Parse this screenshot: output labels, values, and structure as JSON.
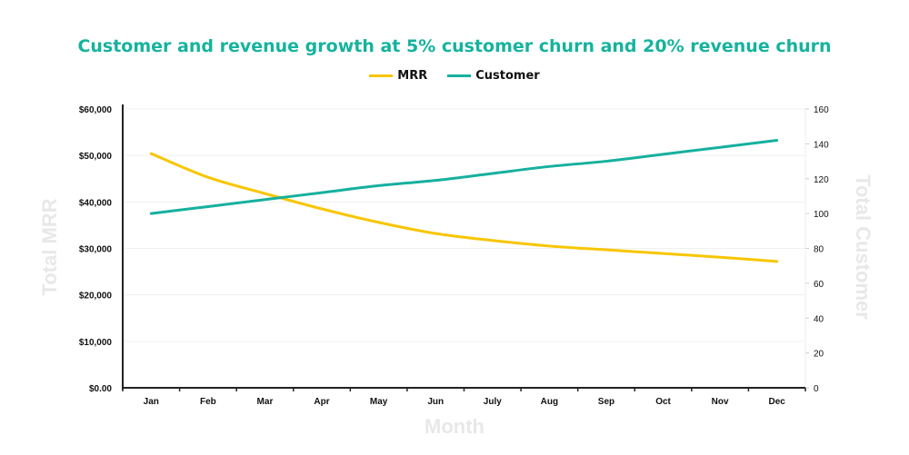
{
  "chart_data": {
    "type": "line",
    "title": "Customer and revenue growth at 5% customer churn and 20% revenue churn",
    "xlabel": "Month",
    "ylabel": "Total MRR",
    "y2label": "Total Customer",
    "categories": [
      "Jan",
      "Feb",
      "Mar",
      "Apr",
      "May",
      "Jun",
      "July",
      "Aug",
      "Sep",
      "Oct",
      "Nov",
      "Dec"
    ],
    "ylim": [
      0,
      60000
    ],
    "y2lim": [
      0,
      160
    ],
    "yticks": [
      "$0.00",
      "$10,000",
      "$20,000",
      "$30,000",
      "$40,000",
      "$50,000",
      "$60,000"
    ],
    "y2ticks": [
      "0",
      "20",
      "40",
      "60",
      "80",
      "100",
      "120",
      "140",
      "160"
    ],
    "grid": true,
    "legend": "top-center",
    "series": [
      {
        "name": "MRR",
        "axis": "left",
        "color": "#f7c600",
        "values": [
          50400,
          45300,
          41800,
          38500,
          35600,
          33200,
          31700,
          30500,
          29700,
          28900,
          28100,
          27200
        ]
      },
      {
        "name": "Customer",
        "axis": "right",
        "color": "#16b09e",
        "values": [
          100,
          104,
          108,
          112,
          116,
          119,
          123,
          127,
          130,
          134,
          138,
          142
        ]
      }
    ]
  }
}
